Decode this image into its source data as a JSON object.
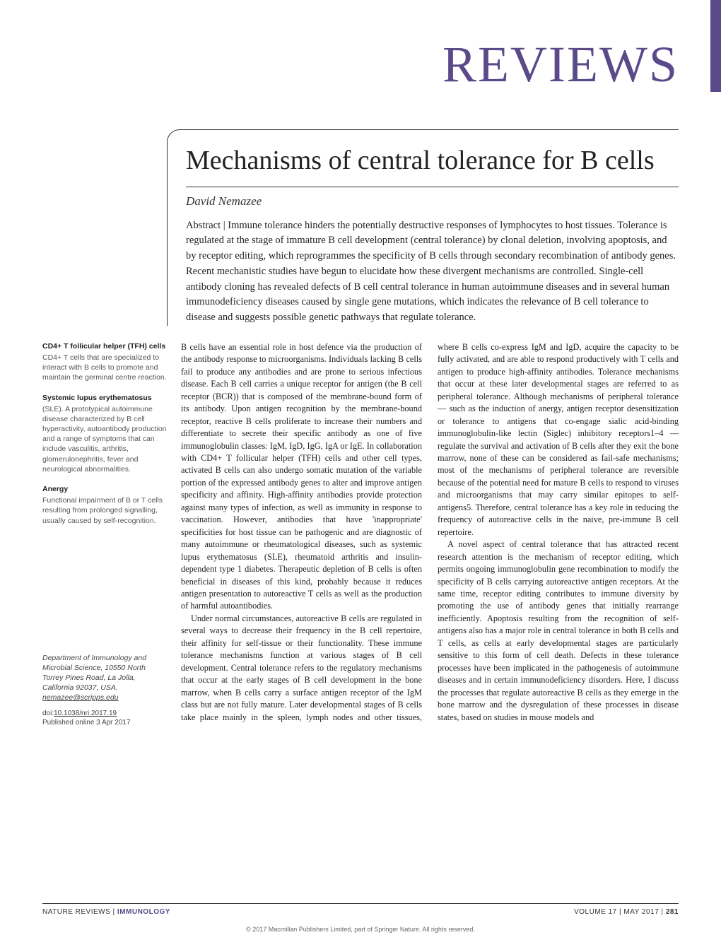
{
  "masthead": "REVIEWS",
  "article": {
    "title": "Mechanisms of central tolerance for B cells",
    "author": "David Nemazee",
    "abstract_label": "Abstract | ",
    "abstract": "Immune tolerance hinders the potentially destructive responses of lymphocytes to host tissues. Tolerance is regulated at the stage of immature B cell development (central tolerance) by clonal deletion, involving apoptosis, and by receptor editing, which reprogrammes the specificity of B cells through secondary recombination of antibody genes. Recent mechanistic studies have begun to elucidate how these divergent mechanisms are controlled. Single-cell antibody cloning has revealed defects of B cell central tolerance in human autoimmune diseases and in several human immunodeficiency diseases caused by single gene mutations, which indicates the relevance of B cell tolerance to disease and suggests possible genetic pathways that regulate tolerance."
  },
  "sidebar": {
    "terms": [
      {
        "term": "CD4+ T follicular helper (TFH) cells",
        "def": "CD4+ T cells that are specialized to interact with B cells to promote and maintain the germinal centre reaction."
      },
      {
        "term": "Systemic lupus erythematosus",
        "def": "(SLE). A prototypical autoimmune disease characterized by B cell hyperactivity, autoantibody production and a range of symptoms that can include vasculitis, arthritis, glomerulonephritis, fever and neurological abnormalities."
      },
      {
        "term": "Anergy",
        "def": "Functional impairment of B or T cells resulting from prolonged signalling, usually caused by self-recognition."
      }
    ],
    "affiliation": "Department of Immunology and Microbial Science, 10550 North Torrey Pines Road, La Jolla, California 92037, USA.",
    "email": "nemazee@scripps.edu",
    "doi": "10.1038/nri.2017.19",
    "published": "Published online 3 Apr 2017"
  },
  "body": {
    "p1": "B cells have an essential role in host defence via the production of the antibody response to microorganisms. Individuals lacking B cells fail to produce any antibodies and are prone to serious infectious disease. Each B cell carries a unique receptor for antigen (the B cell receptor (BCR)) that is composed of the membrane-bound form of its antibody. Upon antigen recognition by the membrane-bound receptor, reactive B cells proliferate to increase their numbers and differentiate to secrete their specific antibody as one of five immunoglobulin classes: IgM, IgD, IgG, IgA or IgE. In collaboration with CD4+ T follicular helper (TFH) cells and other cell types, activated B cells can also undergo somatic mutation of the variable portion of the expressed antibody genes to alter and improve antigen specificity and affinity. High-affinity antibodies provide protection against many types of infection, as well as immunity in response to vaccination. However, antibodies that have 'inappropriate' specificities for host tissue can be pathogenic and are diagnostic of many autoimmune or rheumatological diseases, such as systemic lupus erythematosus (SLE), rheumatoid arthritis and insulin-dependent type 1 diabetes. Therapeutic depletion of B cells is often beneficial in diseases of this kind, probably because it reduces antigen presentation to autoreactive T cells as well as the production of harmful autoantibodies.",
    "p2": "Under normal circumstances, autoreactive B cells are regulated in several ways to decrease their frequency in the B cell repertoire, their affinity for self-tissue or their functionality. These immune tolerance mechanisms function at various stages of B cell development. Central tolerance refers to the regulatory mechanisms that occur at the early stages of B cell development in the bone marrow, when B cells carry a surface antigen receptor of the IgM class but are not fully mature. Later developmental stages of B cells take place mainly in the spleen, lymph nodes and other tissues, where B cells co-express IgM and IgD, acquire the capacity to be fully activated, and are able to respond productively with T cells and antigen to produce high-affinity antibodies. Tolerance mechanisms that occur at these later developmental stages are referred to as peripheral tolerance. Although mechanisms of peripheral tolerance — such as the induction of anergy, antigen receptor desensitization or tolerance to antigens that co-engage sialic acid-binding immunoglobulin-like lectin (Siglec) inhibitory receptors1–4 — regulate the survival and activation of B cells after they exit the bone marrow, none of these can be considered as fail-safe mechanisms; most of the mechanisms of peripheral tolerance are reversible because of the potential need for mature B cells to respond to viruses and microorganisms that may carry similar epitopes to self-antigens5. Therefore, central tolerance has a key role in reducing the frequency of autoreactive cells in the naive, pre-immune B cell repertoire.",
    "p3": "A novel aspect of central tolerance that has attracted recent research attention is the mechanism of receptor editing, which permits ongoing immunoglobulin gene recombination to modify the specificity of B cells carrying autoreactive antigen receptors. At the same time, receptor editing contributes to immune diversity by promoting the use of antibody genes that initially rearrange inefficiently. Apoptosis resulting from the recognition of self-antigens also has a major role in central tolerance in both B cells and T cells, as cells at early developmental stages are particularly sensitive to this form of cell death. Defects in these tolerance processes have been implicated in the pathogenesis of autoimmune diseases and in certain immunodeficiency disorders. Here, I discuss the processes that regulate autoreactive B cells as they emerge in the bone marrow and the dysregulation of these processes in disease states, based on studies in mouse models and"
  },
  "footer": {
    "left_prefix": "NATURE REVIEWS | ",
    "journal": "IMMUNOLOGY",
    "right": "VOLUME 17 | MAY 2017 | ",
    "page": "281",
    "copyright": "© 2017 Macmillan Publishers Limited, part of Springer Nature. All rights reserved."
  },
  "colors": {
    "accent": "#5b4a8a",
    "text": "#222222",
    "sidebar_text": "#555555",
    "background": "#ffffff"
  },
  "typography": {
    "masthead_fontsize": 72,
    "title_fontsize": 38,
    "author_fontsize": 17,
    "abstract_fontsize": 14.5,
    "body_fontsize": 12.3,
    "sidebar_fontsize": 10.5,
    "footer_fontsize": 10
  }
}
